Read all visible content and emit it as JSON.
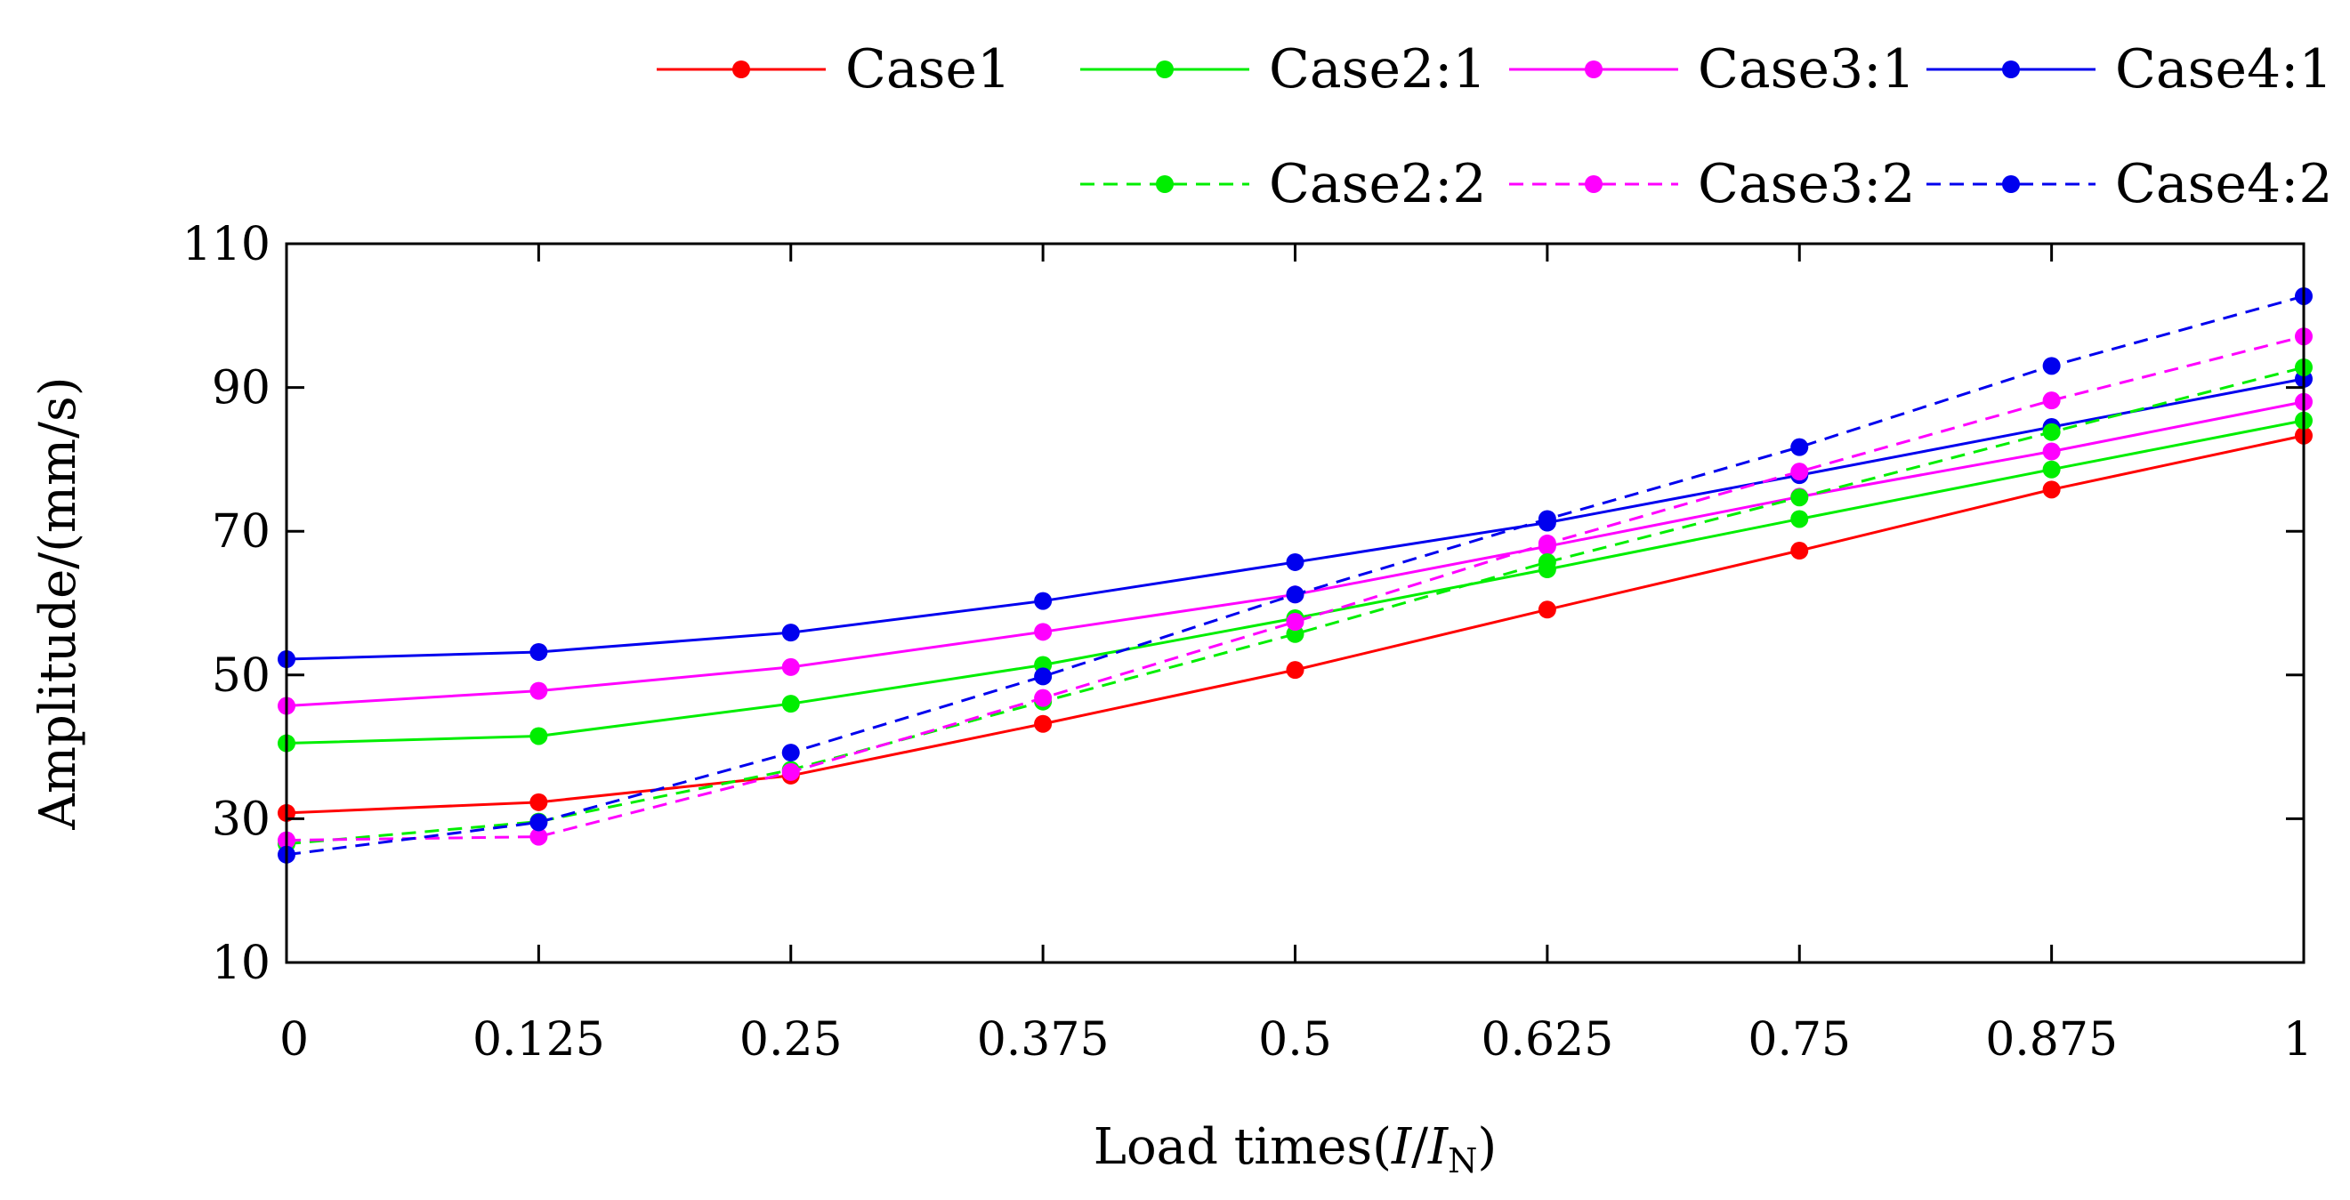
{
  "chart_data": {
    "type": "line",
    "title": "",
    "xlabel": {
      "prefix": "Load times(",
      "i": "I",
      "slash": "/",
      "in": "I",
      "sub": "N",
      "suffix": ")"
    },
    "ylabel": "Amplitude/(mm/s)",
    "x": [
      0,
      0.125,
      0.25,
      0.375,
      0.5,
      0.625,
      0.75,
      0.875,
      1
    ],
    "x_tick_labels": [
      "0",
      "0.125",
      "0.25",
      "0.375",
      "0.5",
      "0.625",
      "0.75",
      "0.875",
      "1"
    ],
    "xlim": [
      0,
      1
    ],
    "ylim": [
      10,
      110
    ],
    "y_ticks": [
      10,
      30,
      50,
      70,
      90,
      110
    ],
    "y_tick_labels": [
      "10",
      "30",
      "50",
      "70",
      "90",
      "110"
    ],
    "grid": false,
    "legend_position": "top, outside plot, 4 columns",
    "series": [
      {
        "name": "Case1",
        "color": "#ff0000",
        "dashed": false,
        "values": [
          30.8,
          32.3,
          36.0,
          43.2,
          50.7,
          59.1,
          67.3,
          75.8,
          83.3
        ]
      },
      {
        "name": "Case2:1",
        "color": "#00ee00",
        "dashed": false,
        "values": [
          40.5,
          41.5,
          46.0,
          51.4,
          57.9,
          64.7,
          71.7,
          78.6,
          85.4
        ]
      },
      {
        "name": "Case3:1",
        "color": "#ff00ff",
        "dashed": false,
        "values": [
          45.7,
          47.8,
          51.1,
          56.0,
          61.2,
          67.9,
          74.8,
          81.1,
          88.0
        ]
      },
      {
        "name": "Case4:1",
        "color": "#0000ee",
        "dashed": false,
        "values": [
          52.2,
          53.2,
          55.9,
          60.3,
          65.7,
          71.2,
          77.8,
          84.5,
          91.2
        ]
      },
      {
        "name": "Case2:2",
        "color": "#00ee00",
        "dashed": true,
        "values": [
          26.5,
          29.6,
          36.8,
          46.3,
          55.7,
          65.7,
          74.7,
          83.8,
          92.8
        ]
      },
      {
        "name": "Case3:2",
        "color": "#ff00ff",
        "dashed": true,
        "values": [
          27.0,
          27.5,
          36.5,
          46.8,
          57.4,
          68.3,
          78.3,
          88.2,
          97.1
        ]
      },
      {
        "name": "Case4:2",
        "color": "#0000ee",
        "dashed": true,
        "values": [
          25.0,
          29.5,
          39.2,
          49.8,
          61.2,
          71.7,
          81.7,
          93.0,
          102.7
        ]
      }
    ]
  }
}
